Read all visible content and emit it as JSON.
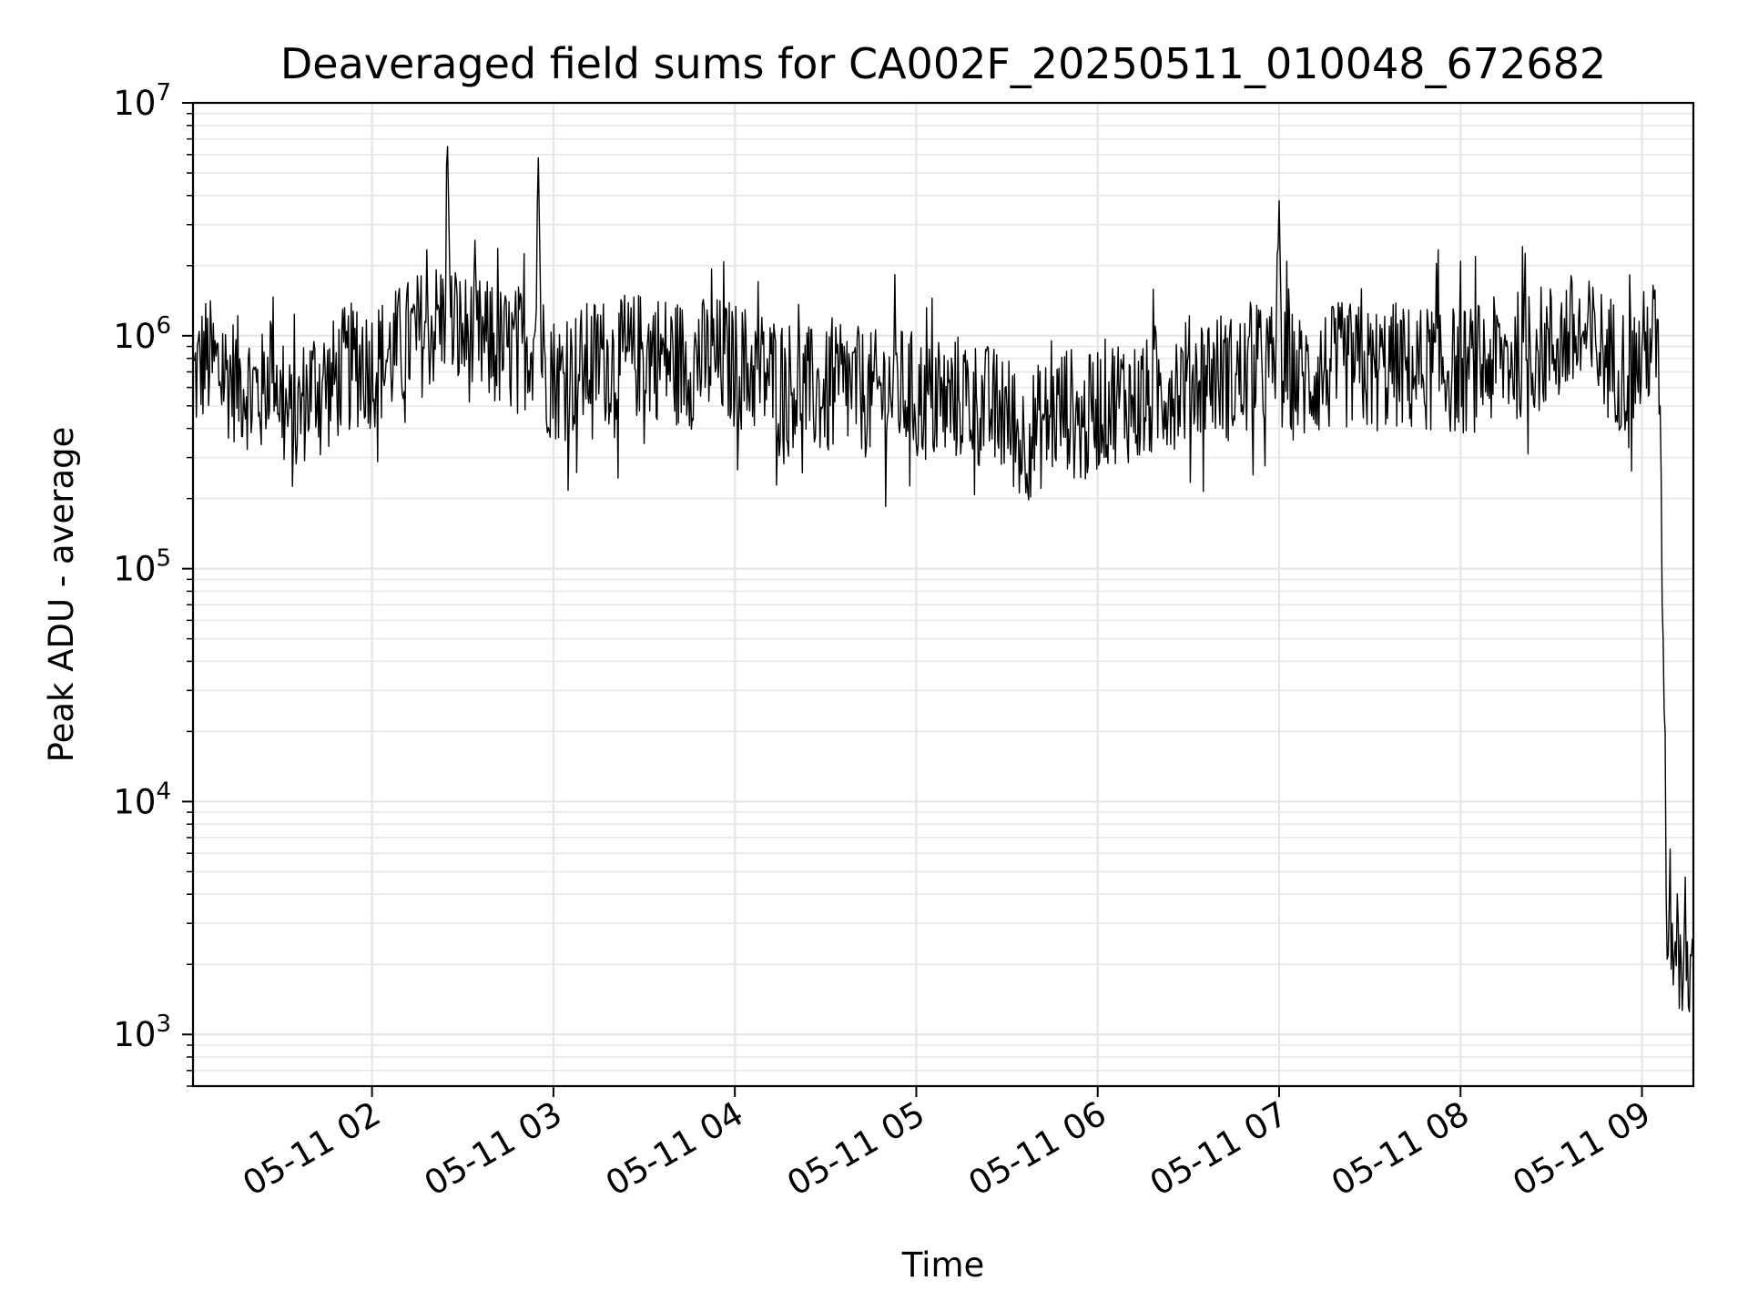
{
  "chart_data": {
    "type": "line",
    "title": "Deaveraged field sums for CA002F_20250511_010048_672682",
    "xlabel": "Time",
    "ylabel": "Peak ADU - average",
    "y_scale": "log",
    "ylim": [
      600,
      10000000
    ],
    "xlim": [
      "2025-05-11 01:00:48",
      "2025-05-11 09:17:00"
    ],
    "grid": true,
    "line_color": "#000000",
    "grid_color": "#e6e6e6",
    "x_ticks": [
      {
        "value": "2025-05-11 02:00",
        "label": "05-11 02"
      },
      {
        "value": "2025-05-11 03:00",
        "label": "05-11 03"
      },
      {
        "value": "2025-05-11 04:00",
        "label": "05-11 04"
      },
      {
        "value": "2025-05-11 05:00",
        "label": "05-11 05"
      },
      {
        "value": "2025-05-11 06:00",
        "label": "05-11 06"
      },
      {
        "value": "2025-05-11 07:00",
        "label": "05-11 07"
      },
      {
        "value": "2025-05-11 08:00",
        "label": "05-11 08"
      },
      {
        "value": "2025-05-11 09:00",
        "label": "05-11 09"
      }
    ],
    "y_ticks": [
      {
        "value": 1000,
        "base": "10",
        "exp": "3"
      },
      {
        "value": 10000,
        "base": "10",
        "exp": "4"
      },
      {
        "value": 100000,
        "base": "10",
        "exp": "5"
      },
      {
        "value": 1000000,
        "base": "10",
        "exp": "6"
      },
      {
        "value": 10000000,
        "base": "10",
        "exp": "7"
      }
    ],
    "series": [
      {
        "x": [
          "2025-05-11 01:01",
          "2025-05-11 01:05",
          "2025-05-11 01:10",
          "2025-05-11 01:15",
          "2025-05-11 01:20",
          "2025-05-11 01:24",
          "2025-05-11 01:27",
          "2025-05-11 01:30",
          "2025-05-11 01:34",
          "2025-05-11 01:38",
          "2025-05-11 01:42",
          "2025-05-11 01:46",
          "2025-05-11 01:50",
          "2025-05-11 01:55",
          "2025-05-11 02:00",
          "2025-05-11 02:05",
          "2025-05-11 02:10",
          "2025-05-11 02:15",
          "2025-05-11 02:20",
          "2025-05-11 02:24",
          "2025-05-11 02:25",
          "2025-05-11 02:26",
          "2025-05-11 02:30",
          "2025-05-11 02:35",
          "2025-05-11 02:40",
          "2025-05-11 02:45",
          "2025-05-11 02:50",
          "2025-05-11 02:54",
          "2025-05-11 02:55",
          "2025-05-11 02:56",
          "2025-05-11 02:58",
          "2025-05-11 03:02",
          "2025-05-11 03:08",
          "2025-05-11 03:15",
          "2025-05-11 03:22",
          "2025-05-11 03:30",
          "2025-05-11 03:38",
          "2025-05-11 03:45",
          "2025-05-11 03:52",
          "2025-05-11 04:00",
          "2025-05-11 04:08",
          "2025-05-11 04:15",
          "2025-05-11 04:22",
          "2025-05-11 04:30",
          "2025-05-11 04:38",
          "2025-05-11 04:45",
          "2025-05-11 04:52",
          "2025-05-11 05:00",
          "2025-05-11 05:08",
          "2025-05-11 05:15",
          "2025-05-11 05:22",
          "2025-05-11 05:30",
          "2025-05-11 05:35",
          "2025-05-11 05:40",
          "2025-05-11 05:45",
          "2025-05-11 05:50",
          "2025-05-11 05:55",
          "2025-05-11 06:00",
          "2025-05-11 06:08",
          "2025-05-11 06:15",
          "2025-05-11 06:22",
          "2025-05-11 06:30",
          "2025-05-11 06:38",
          "2025-05-11 06:45",
          "2025-05-11 06:52",
          "2025-05-11 06:59",
          "2025-05-11 07:00",
          "2025-05-11 07:01",
          "2025-05-11 07:08",
          "2025-05-11 07:15",
          "2025-05-11 07:22",
          "2025-05-11 07:30",
          "2025-05-11 07:38",
          "2025-05-11 07:45",
          "2025-05-11 07:52",
          "2025-05-11 08:00",
          "2025-05-11 08:08",
          "2025-05-11 08:15",
          "2025-05-11 08:22",
          "2025-05-11 08:30",
          "2025-05-11 08:35",
          "2025-05-11 08:40",
          "2025-05-11 08:45",
          "2025-05-11 08:50",
          "2025-05-11 08:55",
          "2025-05-11 09:00",
          "2025-05-11 09:03",
          "2025-05-11 09:05",
          "2025-05-11 09:06",
          "2025-05-11 09:07",
          "2025-05-11 09:08",
          "2025-05-11 09:09",
          "2025-05-11 09:10",
          "2025-05-11 09:11",
          "2025-05-11 09:12",
          "2025-05-11 09:13",
          "2025-05-11 09:14",
          "2025-05-11 09:15",
          "2025-05-11 09:16",
          "2025-05-11 09:17"
        ],
        "y": [
          650000,
          800000,
          700000,
          650000,
          600000,
          550000,
          900000,
          500000,
          400000,
          550000,
          650000,
          600000,
          700000,
          750000,
          750000,
          800000,
          900000,
          1000000,
          1100000,
          1200000,
          6500000,
          1100000,
          1000000,
          950000,
          900000,
          850000,
          900000,
          1000000,
          5800000,
          900000,
          700000,
          650000,
          700000,
          800000,
          750000,
          850000,
          800000,
          750000,
          800000,
          750000,
          700000,
          650000,
          600000,
          550000,
          600000,
          550000,
          600000,
          550000,
          500000,
          550000,
          500000,
          450000,
          350000,
          400000,
          450000,
          500000,
          400000,
          500000,
          550000,
          500000,
          600000,
          650000,
          700000,
          650000,
          700000,
          750000,
          3800000,
          700000,
          650000,
          700000,
          750000,
          700000,
          750000,
          700000,
          750000,
          700000,
          750000,
          800000,
          850000,
          900000,
          1000000,
          950000,
          900000,
          800000,
          700000,
          800000,
          1000000,
          900000,
          500000,
          50000,
          4000,
          3500,
          3000,
          2500,
          3000,
          2000,
          2800,
          2500,
          2200,
          2400
        ]
      }
    ]
  }
}
